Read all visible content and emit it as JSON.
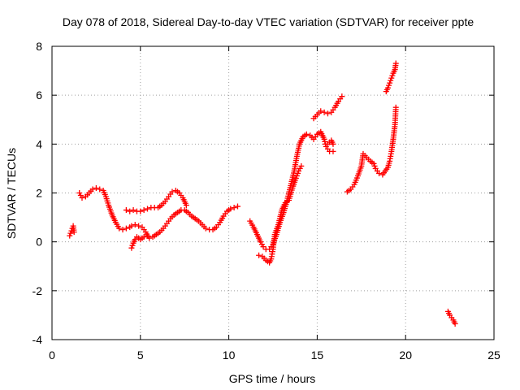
{
  "chart_data": {
    "type": "scatter",
    "title": "Day 078 of 2018, Sidereal Day-to-day VTEC variation (SDTVAR) for receiver ppte",
    "xlabel": "GPS time / hours",
    "ylabel": "SDTVAR / TECUs",
    "xlim": [
      0,
      25
    ],
    "ylim": [
      -4,
      8
    ],
    "xticks": [
      0,
      5,
      10,
      15,
      20,
      25
    ],
    "yticks": [
      -4,
      -2,
      0,
      2,
      4,
      6,
      8
    ],
    "grid": true,
    "marker": "plus",
    "color": "#ff0000",
    "series": [
      {
        "name": "SDTVAR",
        "segments": [
          [
            [
              1.0,
              0.25
            ],
            [
              1.1,
              0.45
            ],
            [
              1.2,
              0.65
            ],
            [
              1.25,
              0.4
            ]
          ],
          [
            [
              1.55,
              2.0
            ],
            [
              1.7,
              1.8
            ],
            [
              1.9,
              1.85
            ],
            [
              2.1,
              2.0
            ],
            [
              2.3,
              2.15
            ],
            [
              2.5,
              2.2
            ],
            [
              2.7,
              2.15
            ],
            [
              2.9,
              2.1
            ],
            [
              3.05,
              1.85
            ],
            [
              3.2,
              1.5
            ],
            [
              3.4,
              1.1
            ],
            [
              3.6,
              0.8
            ],
            [
              3.8,
              0.55
            ],
            [
              4.0,
              0.5
            ],
            [
              4.2,
              0.55
            ],
            [
              4.4,
              0.6
            ],
            [
              4.5,
              0.65
            ],
            [
              4.7,
              0.7
            ],
            [
              4.9,
              0.65
            ],
            [
              5.1,
              0.6
            ],
            [
              5.3,
              0.4
            ],
            [
              5.5,
              0.15
            ],
            [
              5.7,
              0.2
            ],
            [
              5.9,
              0.3
            ],
            [
              6.1,
              0.4
            ],
            [
              6.3,
              0.55
            ],
            [
              6.5,
              0.75
            ],
            [
              6.7,
              0.95
            ],
            [
              6.9,
              1.1
            ],
            [
              7.1,
              1.2
            ],
            [
              7.3,
              1.3
            ],
            [
              7.5,
              1.3
            ],
            [
              7.7,
              1.2
            ],
            [
              7.9,
              1.05
            ],
            [
              8.1,
              0.95
            ],
            [
              8.3,
              0.85
            ],
            [
              8.5,
              0.7
            ],
            [
              8.7,
              0.55
            ],
            [
              8.9,
              0.5
            ],
            [
              9.1,
              0.5
            ],
            [
              9.3,
              0.6
            ],
            [
              9.5,
              0.8
            ],
            [
              9.7,
              1.05
            ],
            [
              9.9,
              1.25
            ],
            [
              10.1,
              1.35
            ],
            [
              10.3,
              1.4
            ],
            [
              10.5,
              1.45
            ]
          ],
          [
            [
              4.2,
              1.3
            ],
            [
              4.4,
              1.25
            ],
            [
              4.6,
              1.3
            ],
            [
              4.8,
              1.25
            ],
            [
              5.0,
              1.25
            ],
            [
              5.2,
              1.3
            ],
            [
              5.4,
              1.35
            ],
            [
              5.6,
              1.4
            ],
            [
              5.8,
              1.4
            ],
            [
              6.0,
              1.4
            ],
            [
              6.2,
              1.5
            ],
            [
              6.4,
              1.65
            ],
            [
              6.6,
              1.85
            ],
            [
              6.8,
              2.05
            ],
            [
              7.0,
              2.1
            ],
            [
              7.2,
              2.0
            ],
            [
              7.4,
              1.8
            ],
            [
              7.6,
              1.5
            ]
          ],
          [
            [
              4.5,
              -0.25
            ],
            [
              4.6,
              -0.05
            ],
            [
              4.7,
              0.1
            ],
            [
              4.8,
              0.2
            ],
            [
              4.9,
              0.15
            ],
            [
              5.0,
              0.1
            ],
            [
              5.2,
              0.2
            ],
            [
              5.4,
              0.25
            ]
          ],
          [
            [
              11.2,
              0.85
            ],
            [
              11.4,
              0.6
            ],
            [
              11.6,
              0.3
            ],
            [
              11.8,
              0.0
            ],
            [
              11.95,
              -0.2
            ],
            [
              12.1,
              -0.3
            ],
            [
              12.3,
              -0.3
            ],
            [
              12.5,
              -0.1
            ],
            [
              12.7,
              0.3
            ],
            [
              12.9,
              0.8
            ],
            [
              13.1,
              1.2
            ],
            [
              13.3,
              1.7
            ],
            [
              13.5,
              2.3
            ],
            [
              13.7,
              2.9
            ],
            [
              13.85,
              3.5
            ],
            [
              14.0,
              4.0
            ],
            [
              14.2,
              4.3
            ],
            [
              14.4,
              4.4
            ],
            [
              14.6,
              4.35
            ],
            [
              14.8,
              4.2
            ],
            [
              15.0,
              4.4
            ],
            [
              15.2,
              4.5
            ],
            [
              15.4,
              4.2
            ],
            [
              15.5,
              3.9
            ],
            [
              15.7,
              3.7
            ],
            [
              15.9,
              3.7
            ]
          ],
          [
            [
              11.7,
              -0.55
            ],
            [
              11.9,
              -0.6
            ],
            [
              12.1,
              -0.75
            ],
            [
              12.3,
              -0.85
            ],
            [
              12.4,
              -0.7
            ],
            [
              12.5,
              -0.3
            ],
            [
              12.6,
              0.3
            ],
            [
              12.8,
              0.7
            ],
            [
              13.0,
              1.3
            ],
            [
              13.2,
              1.6
            ],
            [
              13.4,
              1.7
            ],
            [
              13.6,
              2.2
            ],
            [
              13.8,
              2.6
            ],
            [
              13.95,
              2.9
            ],
            [
              14.1,
              3.1
            ]
          ],
          [
            [
              15.6,
              4.0
            ],
            [
              15.8,
              4.15
            ],
            [
              15.9,
              4.0
            ]
          ],
          [
            [
              14.8,
              5.05
            ],
            [
              15.0,
              5.2
            ],
            [
              15.2,
              5.35
            ],
            [
              15.4,
              5.3
            ],
            [
              15.6,
              5.25
            ],
            [
              15.8,
              5.3
            ],
            [
              16.0,
              5.5
            ],
            [
              16.2,
              5.75
            ],
            [
              16.4,
              5.95
            ]
          ],
          [
            [
              16.7,
              2.05
            ],
            [
              16.9,
              2.15
            ],
            [
              17.1,
              2.35
            ],
            [
              17.3,
              2.7
            ],
            [
              17.5,
              3.1
            ],
            [
              17.6,
              3.6
            ],
            [
              17.8,
              3.45
            ],
            [
              18.0,
              3.3
            ],
            [
              18.2,
              3.2
            ],
            [
              18.3,
              3.0
            ],
            [
              18.5,
              2.8
            ],
            [
              18.7,
              2.75
            ],
            [
              18.85,
              2.9
            ],
            [
              19.0,
              3.05
            ],
            [
              19.1,
              3.3
            ],
            [
              19.2,
              3.7
            ],
            [
              19.3,
              4.2
            ],
            [
              19.4,
              4.8
            ],
            [
              19.45,
              5.5
            ]
          ],
          [
            [
              18.9,
              6.15
            ],
            [
              19.0,
              6.3
            ],
            [
              19.1,
              6.5
            ],
            [
              19.2,
              6.7
            ],
            [
              19.3,
              6.9
            ],
            [
              19.4,
              7.05
            ],
            [
              19.45,
              7.3
            ]
          ],
          [
            [
              22.4,
              -2.85
            ],
            [
              22.5,
              -3.0
            ],
            [
              22.6,
              -3.1
            ],
            [
              22.7,
              -3.2
            ],
            [
              22.8,
              -3.35
            ]
          ]
        ]
      }
    ]
  }
}
